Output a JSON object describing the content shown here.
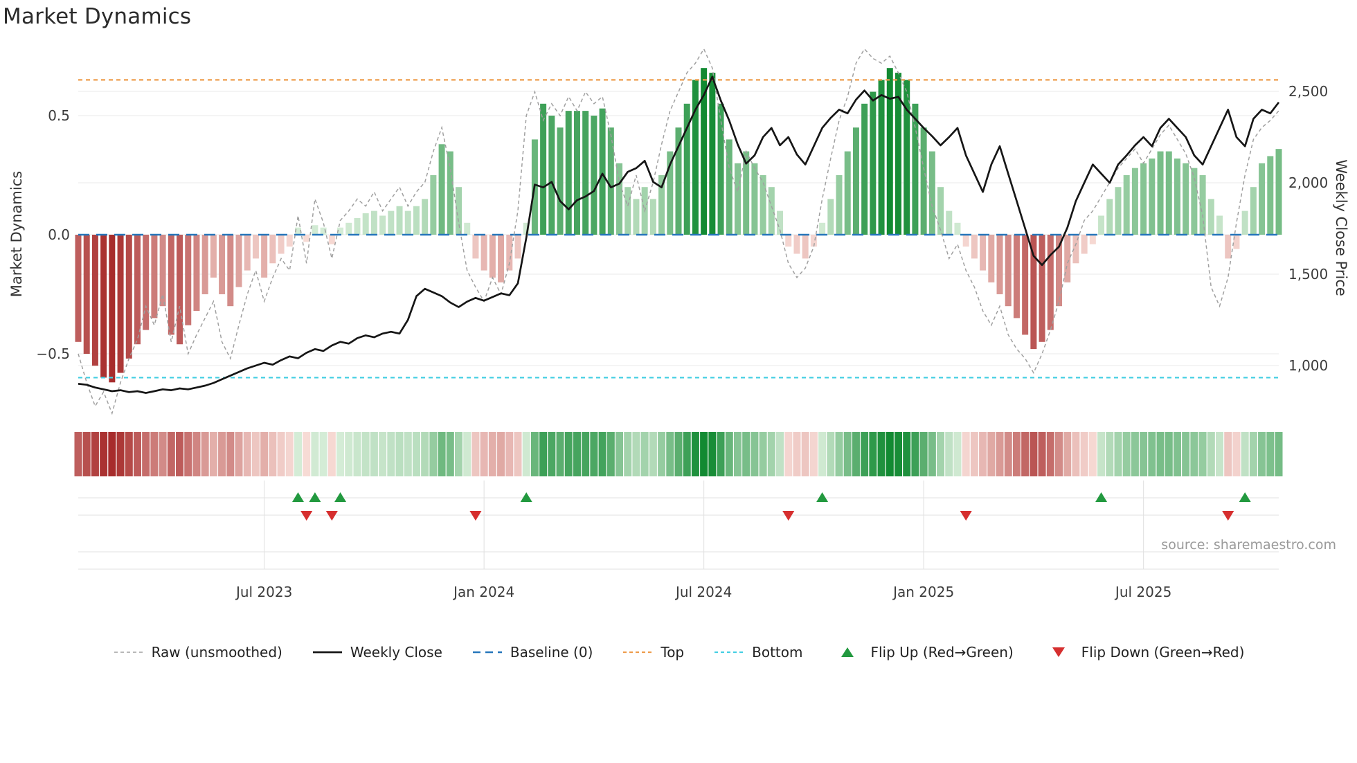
{
  "title": "Market Dynamics",
  "source": "source: sharemaestro.com",
  "axes": {
    "left_label": "Market Dynamics",
    "right_label": "Weekly Close Price",
    "left_ticks": [
      {
        "value": 0.5,
        "label": "0.5"
      },
      {
        "value": 0.0,
        "label": "0.0"
      },
      {
        "value": -0.5,
        "label": "−0.5"
      }
    ],
    "right_ticks": [
      {
        "value": 2500,
        "label": "2,500"
      },
      {
        "value": 2000,
        "label": "2,000"
      },
      {
        "value": 1500,
        "label": "1,500"
      },
      {
        "value": 1000,
        "label": "1,000"
      }
    ]
  },
  "legend": [
    {
      "key": "raw-line",
      "label": "Raw (unsmoothed)",
      "type": "line",
      "color": "#a0a0a0",
      "dash": "5 4",
      "width": 1.6
    },
    {
      "key": "weekly-close-line",
      "label": "Weekly Close",
      "type": "line",
      "color": "#161616",
      "dash": "",
      "width": 2.8
    },
    {
      "key": "baseline-line",
      "label": "Baseline (0)",
      "type": "line",
      "color": "#2676bb",
      "dash": "11 7",
      "width": 2.4
    },
    {
      "key": "top-line",
      "label": "Top",
      "type": "line",
      "color": "#ee9d4d",
      "dash": "5 4",
      "width": 2.2
    },
    {
      "key": "bottom-line",
      "label": "Bottom",
      "type": "line",
      "color": "#45cfe3",
      "dash": "5 4",
      "width": 2.2
    },
    {
      "key": "flip-up-marker",
      "label": "Flip Up (Red→Green)",
      "type": "marker",
      "shape": "triangle-up",
      "color": "#22993f"
    },
    {
      "key": "flip-down-marker",
      "label": "Flip Down (Green→Red)",
      "type": "marker",
      "shape": "triangle-down",
      "color": "#d62f2f"
    }
  ],
  "colors": {
    "bar_red_dark": "#a32323",
    "bar_red_light": "#fbe4de",
    "bar_green_dark": "#128a32",
    "bar_green_light": "#ddf0dd",
    "weekly_close_line": "#161616",
    "raw_line": "#a0a0a0",
    "baseline": "#2676bb",
    "top_line": "#ee9d4d",
    "bottom_line": "#45cfe3",
    "flip_up_marker": "#22993f",
    "flip_down_marker": "#d62f2f",
    "grid": "#e8e8e8",
    "panel_grid": "#e2e2e2",
    "tick_text": "#3c3c3c"
  },
  "chart_data": {
    "type": "combo: bar oscillator (left axis) + dashed raw line (left axis) + weekly close price line (right axis) + color heatmap strip + flip event markers",
    "x_unit": "weeks",
    "x_range_approx": "Feb 2023 to Oct 2025, weekly points",
    "n_points": 143,
    "x_ticks": [
      {
        "week": 22,
        "label": "Jul 2023"
      },
      {
        "week": 48,
        "label": "Jan 2024"
      },
      {
        "week": 74,
        "label": "Jul 2024"
      },
      {
        "week": 100,
        "label": "Jan 2025"
      },
      {
        "week": 126,
        "label": "Jul 2025"
      }
    ],
    "left_ylim": [
      -0.78,
      0.8
    ],
    "right_ylim": [
      700,
      2750
    ],
    "baseline": 0,
    "top_level": 0.65,
    "bottom_level": -0.6,
    "grid": "horizontal on; vertical only in marker panel",
    "legend_position": "bottom center",
    "oscillator": [
      -0.45,
      -0.5,
      -0.55,
      -0.6,
      -0.62,
      -0.58,
      -0.52,
      -0.46,
      -0.4,
      -0.35,
      -0.3,
      -0.42,
      -0.46,
      -0.38,
      -0.32,
      -0.25,
      -0.18,
      -0.25,
      -0.3,
      -0.22,
      -0.15,
      -0.1,
      -0.18,
      -0.12,
      -0.08,
      -0.05,
      0.03,
      -0.03,
      0.04,
      0.03,
      -0.04,
      0.03,
      0.05,
      0.07,
      0.09,
      0.1,
      0.08,
      0.1,
      0.12,
      0.1,
      0.12,
      0.15,
      0.25,
      0.38,
      0.35,
      0.2,
      0.05,
      -0.1,
      -0.15,
      -0.18,
      -0.2,
      -0.15,
      -0.1,
      0.05,
      0.4,
      0.55,
      0.5,
      0.45,
      0.52,
      0.52,
      0.52,
      0.5,
      0.53,
      0.45,
      0.3,
      0.2,
      0.15,
      0.2,
      0.15,
      0.25,
      0.35,
      0.45,
      0.55,
      0.65,
      0.7,
      0.68,
      0.55,
      0.4,
      0.3,
      0.35,
      0.3,
      0.25,
      0.2,
      0.1,
      -0.05,
      -0.08,
      -0.1,
      -0.05,
      0.05,
      0.15,
      0.25,
      0.35,
      0.45,
      0.55,
      0.6,
      0.65,
      0.7,
      0.68,
      0.65,
      0.55,
      0.45,
      0.35,
      0.2,
      0.1,
      0.05,
      -0.05,
      -0.1,
      -0.15,
      -0.2,
      -0.25,
      -0.3,
      -0.35,
      -0.42,
      -0.48,
      -0.45,
      -0.4,
      -0.3,
      -0.2,
      -0.12,
      -0.08,
      -0.04,
      0.08,
      0.15,
      0.2,
      0.25,
      0.28,
      0.3,
      0.32,
      0.35,
      0.35,
      0.32,
      0.3,
      0.28,
      0.25,
      0.15,
      0.08,
      -0.1,
      -0.06,
      0.1,
      0.2,
      0.3,
      0.33,
      0.36
    ],
    "raw": [
      -0.5,
      -0.62,
      -0.72,
      -0.66,
      -0.75,
      -0.62,
      -0.52,
      -0.44,
      -0.3,
      -0.38,
      -0.25,
      -0.45,
      -0.3,
      -0.5,
      -0.42,
      -0.35,
      -0.28,
      -0.45,
      -0.52,
      -0.38,
      -0.25,
      -0.15,
      -0.28,
      -0.18,
      -0.1,
      -0.15,
      0.08,
      -0.12,
      0.15,
      0.05,
      -0.1,
      0.06,
      0.1,
      0.15,
      0.12,
      0.18,
      0.1,
      0.15,
      0.2,
      0.12,
      0.18,
      0.22,
      0.35,
      0.45,
      0.28,
      0.05,
      -0.15,
      -0.22,
      -0.28,
      -0.18,
      -0.25,
      -0.12,
      0.1,
      0.5,
      0.6,
      0.48,
      0.55,
      0.5,
      0.58,
      0.52,
      0.6,
      0.55,
      0.58,
      0.42,
      0.22,
      0.12,
      0.25,
      0.1,
      0.22,
      0.38,
      0.52,
      0.6,
      0.68,
      0.72,
      0.78,
      0.7,
      0.48,
      0.28,
      0.18,
      0.35,
      0.28,
      0.22,
      0.12,
      0.02,
      -0.12,
      -0.18,
      -0.14,
      -0.05,
      0.15,
      0.32,
      0.48,
      0.58,
      0.72,
      0.78,
      0.74,
      0.72,
      0.75,
      0.68,
      0.6,
      0.45,
      0.28,
      0.12,
      0.02,
      -0.1,
      -0.04,
      -0.15,
      -0.22,
      -0.32,
      -0.38,
      -0.3,
      -0.42,
      -0.48,
      -0.52,
      -0.58,
      -0.5,
      -0.4,
      -0.28,
      -0.12,
      -0.04,
      0.06,
      0.1,
      0.16,
      0.22,
      0.28,
      0.32,
      0.36,
      0.3,
      0.36,
      0.42,
      0.46,
      0.4,
      0.34,
      0.24,
      0.08,
      -0.22,
      -0.3,
      -0.18,
      0.05,
      0.25,
      0.4,
      0.45,
      0.48,
      0.52
    ],
    "weekly_close": [
      900,
      895,
      880,
      870,
      860,
      865,
      855,
      860,
      850,
      860,
      870,
      865,
      875,
      870,
      880,
      890,
      905,
      925,
      945,
      965,
      985,
      1000,
      1015,
      1005,
      1030,
      1050,
      1040,
      1070,
      1090,
      1080,
      1110,
      1130,
      1120,
      1150,
      1165,
      1155,
      1175,
      1185,
      1175,
      1250,
      1380,
      1420,
      1400,
      1380,
      1345,
      1320,
      1350,
      1370,
      1355,
      1375,
      1395,
      1385,
      1450,
      1700,
      1990,
      1975,
      2005,
      1900,
      1855,
      1905,
      1925,
      1955,
      2050,
      1975,
      1995,
      2060,
      2080,
      2120,
      2005,
      1975,
      2100,
      2200,
      2300,
      2400,
      2480,
      2580,
      2450,
      2340,
      2210,
      2105,
      2150,
      2250,
      2300,
      2205,
      2250,
      2155,
      2100,
      2200,
      2300,
      2355,
      2400,
      2380,
      2455,
      2505,
      2450,
      2480,
      2460,
      2470,
      2400,
      2350,
      2300,
      2255,
      2205,
      2250,
      2300,
      2150,
      2050,
      1950,
      2100,
      2200,
      2050,
      1900,
      1750,
      1600,
      1550,
      1605,
      1650,
      1755,
      1900,
      2000,
      2100,
      2050,
      2000,
      2100,
      2150,
      2205,
      2250,
      2200,
      2300,
      2350,
      2300,
      2250,
      2150,
      2100,
      2200,
      2300,
      2400,
      2250,
      2200,
      2350,
      2400,
      2380,
      2440
    ],
    "flip_up_weeks": [
      26,
      28,
      31,
      53,
      88,
      121,
      138
    ],
    "flip_down_weeks": [
      27,
      30,
      47,
      84,
      105,
      136
    ],
    "heatmap": "strip below main plot; one cell per week colored by oscillator value (dark red negative → white → dark green positive)"
  }
}
